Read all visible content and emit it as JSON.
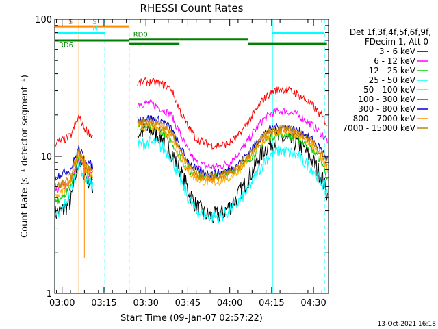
{
  "chart_data": {
    "type": "line",
    "title": "RHESSI Count Rates",
    "ylabel": "Count Rate (s⁻¹ detector segment⁻¹)",
    "xlabel": "Start Time (09-Jan-07 02:57:22)",
    "yscale": "log",
    "ylim": [
      1,
      100
    ],
    "yticks": [
      {
        "value": 1,
        "label": "1"
      },
      {
        "value": 10,
        "label": "10"
      },
      {
        "value": 100,
        "label": "100"
      }
    ],
    "xlim": [
      "02:57:22",
      "04:35:22"
    ],
    "xticks": [
      "03:00",
      "03:15",
      "03:30",
      "03:45",
      "04:00",
      "04:15",
      "04:30"
    ],
    "x_hours": [
      2.956,
      3.0,
      3.05,
      3.1,
      3.133,
      3.183,
      3.25,
      3.3,
      3.35,
      3.45,
      3.5,
      3.55,
      3.6,
      3.65,
      3.7,
      3.75,
      3.8,
      3.85,
      3.9,
      3.95,
      4.0,
      4.05,
      4.1,
      4.15,
      4.2,
      4.25,
      4.3,
      4.35,
      4.4,
      4.45,
      4.5,
      4.55,
      4.583
    ],
    "gap_hours": [
      3.19,
      3.42
    ],
    "series": [
      {
        "name": "3 - 6 keV",
        "color": "#000000",
        "values": [
          3.8,
          4.0,
          4.6,
          9.5,
          7.5,
          6.0,
          null,
          null,
          null,
          14.5,
          15.5,
          15.0,
          13.5,
          11.0,
          8.0,
          5.8,
          4.3,
          3.8,
          3.6,
          3.8,
          4.3,
          5.2,
          6.5,
          8.5,
          11.0,
          12.8,
          13.5,
          13.0,
          12.5,
          11.0,
          9.0,
          7.0,
          5.2
        ]
      },
      {
        "name": "6 - 12 keV",
        "color": "#ff00ff",
        "values": [
          5.5,
          6.0,
          6.5,
          9.5,
          8.0,
          7.0,
          null,
          null,
          null,
          24.0,
          24.5,
          23.5,
          22.0,
          20.0,
          15.0,
          11.0,
          9.0,
          8.5,
          8.3,
          8.5,
          9.0,
          10.5,
          12.5,
          15.5,
          18.5,
          20.5,
          21.5,
          21.0,
          20.0,
          18.5,
          16.5,
          14.5,
          13.0
        ]
      },
      {
        "name": "12 - 25 keV",
        "color": "#00cc00",
        "values": [
          4.5,
          5.0,
          6.0,
          10.0,
          8.5,
          7.0,
          null,
          null,
          null,
          16.0,
          16.5,
          16.0,
          15.0,
          13.0,
          10.0,
          8.0,
          7.2,
          7.0,
          7.0,
          7.2,
          7.6,
          8.2,
          9.0,
          10.5,
          12.5,
          14.0,
          14.5,
          14.2,
          13.5,
          12.5,
          11.0,
          9.0,
          7.0
        ]
      },
      {
        "name": "25 - 50 keV",
        "color": "#00ffff",
        "values": [
          3.5,
          4.0,
          5.5,
          9.0,
          7.0,
          6.0,
          null,
          null,
          null,
          12.0,
          12.5,
          12.5,
          11.5,
          10.0,
          7.0,
          5.0,
          4.0,
          3.7,
          3.6,
          3.7,
          4.0,
          4.6,
          5.5,
          7.0,
          9.0,
          10.5,
          11.0,
          10.8,
          10.2,
          9.0,
          8.0,
          6.5,
          5.5
        ]
      },
      {
        "name": "50 - 100 keV",
        "color": "#ffb000",
        "values": [
          5.0,
          5.5,
          6.5,
          10.5,
          8.5,
          7.0,
          null,
          null,
          null,
          16.0,
          16.5,
          16.2,
          15.5,
          13.5,
          10.0,
          7.8,
          6.8,
          6.5,
          6.4,
          6.6,
          7.0,
          7.8,
          9.0,
          11.0,
          13.0,
          14.5,
          15.0,
          14.8,
          14.0,
          13.0,
          11.5,
          9.5,
          8.0
        ]
      },
      {
        "name": "100 - 300 keV",
        "color": "#ff0000",
        "values": [
          12.5,
          13.0,
          14.0,
          19.5,
          16.0,
          14.0,
          null,
          null,
          null,
          34.0,
          35.0,
          34.5,
          33.5,
          31.0,
          22.0,
          16.5,
          13.5,
          12.5,
          12.0,
          12.0,
          12.5,
          14.0,
          17.0,
          21.0,
          26.0,
          29.5,
          31.0,
          30.5,
          28.5,
          26.0,
          23.0,
          19.5,
          17.0
        ]
      },
      {
        "name": "300 - 800 keV",
        "color": "#0000cc",
        "values": [
          7.0,
          7.5,
          8.0,
          11.5,
          9.5,
          8.5,
          null,
          null,
          null,
          18.5,
          19.0,
          18.8,
          18.0,
          16.0,
          12.0,
          9.2,
          8.0,
          7.6,
          7.5,
          7.6,
          8.0,
          8.8,
          10.2,
          12.2,
          14.5,
          16.0,
          16.5,
          16.2,
          15.5,
          14.5,
          13.0,
          11.0,
          9.5
        ]
      },
      {
        "name": "800 - 7000 keV",
        "color": "#ff8c00",
        "values": [
          5.6,
          6.0,
          6.8,
          11.0,
          9.0,
          7.5,
          null,
          null,
          null,
          17.0,
          17.5,
          17.2,
          16.5,
          14.5,
          11.0,
          8.4,
          7.2,
          6.9,
          6.8,
          7.0,
          7.4,
          8.2,
          9.5,
          11.5,
          13.8,
          15.2,
          15.8,
          15.6,
          14.8,
          13.8,
          12.2,
          10.2,
          8.6
        ]
      },
      {
        "name": "7000 - 15000 keV",
        "color": "#b8860b",
        "values": [
          6.0,
          6.3,
          7.0,
          11.0,
          9.0,
          7.8,
          null,
          null,
          null,
          17.5,
          18.0,
          17.8,
          17.0,
          15.0,
          11.5,
          8.8,
          7.6,
          7.2,
          7.1,
          7.3,
          7.7,
          8.5,
          9.8,
          11.8,
          14.0,
          15.5,
          16.0,
          15.8,
          15.0,
          14.0,
          12.5,
          10.5,
          9.0
        ]
      }
    ],
    "legend": {
      "placement": "right",
      "header1": "Det 1f,3f,4f,5f,6f,9f,",
      "header2": "FDecim 1, Att 0"
    },
    "annotations": [
      {
        "label": "S",
        "color": "#ff8c00",
        "kind": "bar",
        "y": 88,
        "x_start": 2.956,
        "x_end": 3.1
      },
      {
        "label": "S",
        "color": "#ff8c00",
        "kind": "bar",
        "y": 88,
        "x_start": 3.1,
        "x_end": 3.4
      },
      {
        "label": "N",
        "color": "#00ffff",
        "kind": "bar",
        "y": 79,
        "x_start": 2.956,
        "x_end": 3.255
      },
      {
        "label": "",
        "color": "#00ffff",
        "kind": "bar",
        "y": 79,
        "x_start": 4.255,
        "x_end": 4.565
      },
      {
        "label": "RD6",
        "color": "#008000",
        "kind": "bar",
        "y": 70,
        "x_start": 2.956,
        "x_end": 3.4
      },
      {
        "label": "RD0",
        "color": "#008000",
        "kind": "bar",
        "y": 71,
        "x_start": 3.4,
        "x_end": 3.7
      },
      {
        "label": "",
        "color": "#008000",
        "kind": "bar",
        "y": 66,
        "x_start": 3.4,
        "x_end": 3.7
      },
      {
        "label": "",
        "color": "#008000",
        "kind": "bar",
        "y": 71,
        "x_start": 3.7,
        "x_end": 4.11
      },
      {
        "label": "",
        "color": "#008000",
        "kind": "bar",
        "y": 66,
        "x_start": 4.11,
        "x_end": 4.58
      }
    ],
    "vlines": [
      {
        "x": 2.956,
        "color": "#00ffff",
        "style": "solid"
      },
      {
        "x": 3.1,
        "color": "#ff8c00",
        "style": "solid"
      },
      {
        "x": 3.255,
        "color": "#00ffff",
        "style": "dashed"
      },
      {
        "x": 3.4,
        "color": "#ff8c00",
        "style": "dashed"
      },
      {
        "x": 4.255,
        "color": "#00ffff",
        "style": "solid"
      },
      {
        "x": 4.565,
        "color": "#00ffff",
        "style": "dashed"
      }
    ],
    "grid": false
  },
  "footer": {
    "date": "13-Oct-2021 16:18"
  }
}
